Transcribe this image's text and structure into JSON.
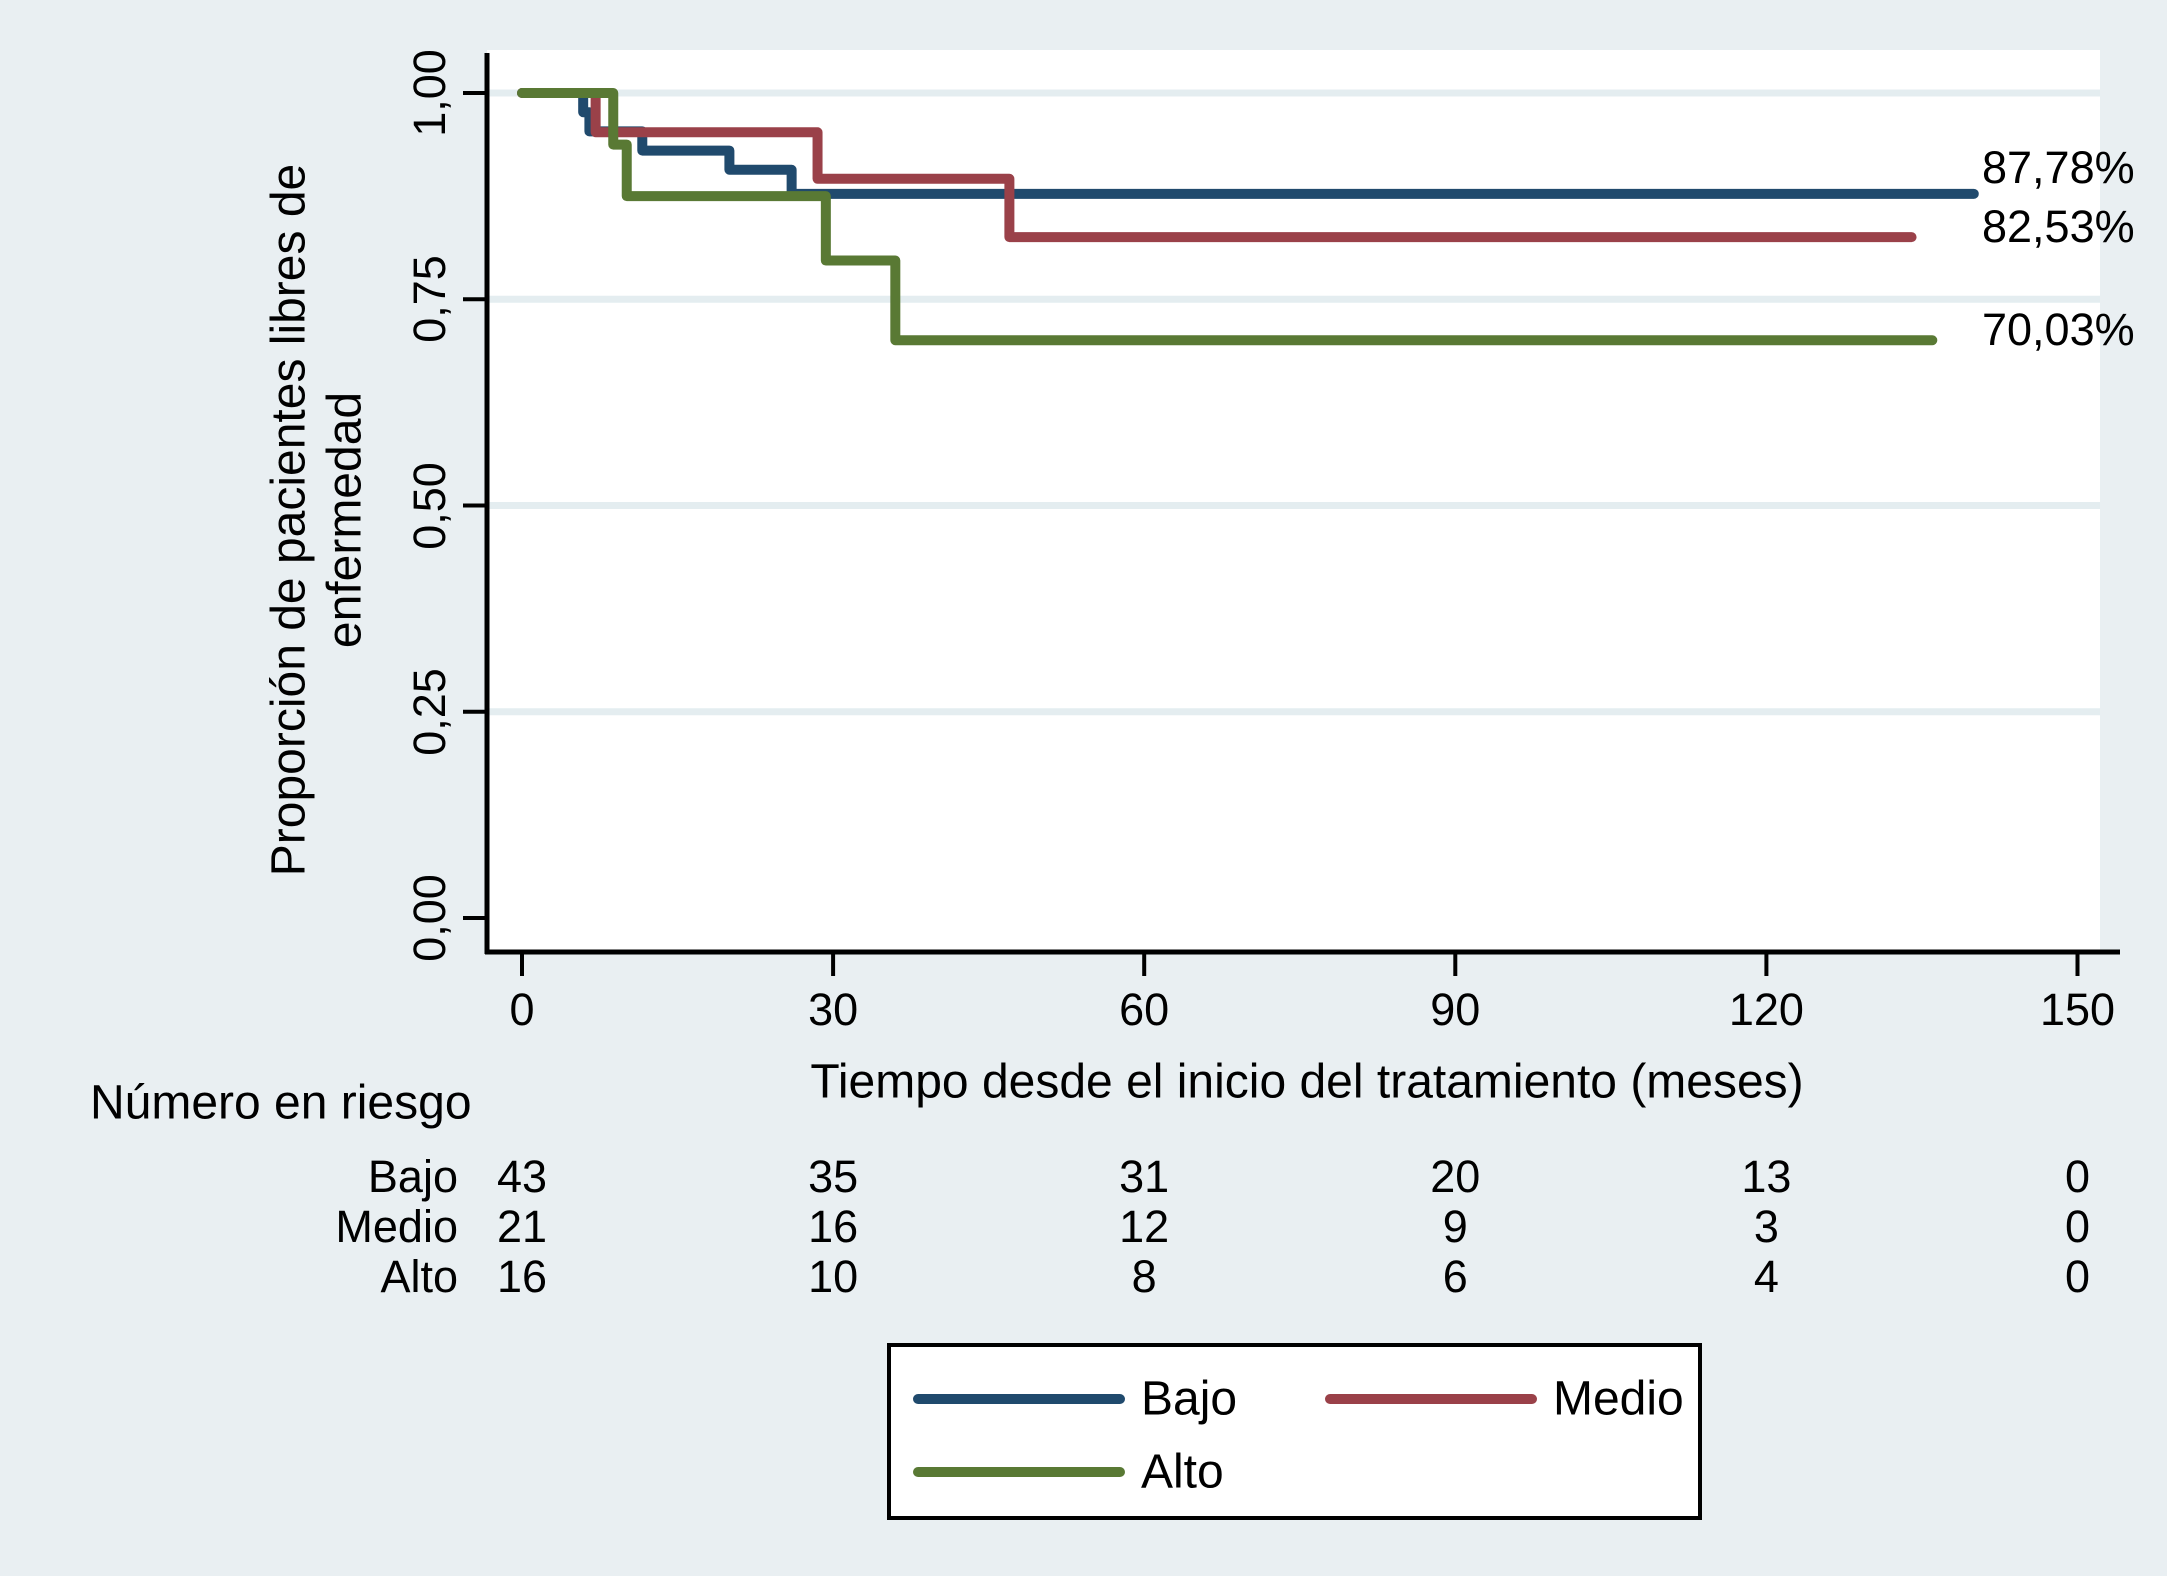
{
  "colors": {
    "background": "#e9eff2",
    "plot_background": "#ffffff",
    "gridline": "#e4edf0",
    "axis": "#000000",
    "navy": "#204a6d",
    "maroon": "#9a4149",
    "olive": "#597934"
  },
  "chart_data": {
    "type": "line",
    "subtype": "kaplan-meier-step",
    "title": "",
    "xlabel": "Tiempo desde el inicio del tratamiento (meses)",
    "ylabel_line1": "Proporción de pacientes libres de",
    "ylabel_line2": "enfermedad",
    "xlim": [
      0,
      150
    ],
    "ylim": [
      0,
      1
    ],
    "xticks": [
      0,
      30,
      60,
      90,
      120,
      150
    ],
    "ytick_values": [
      0,
      0.25,
      0.5,
      0.75,
      1
    ],
    "ytick_labels": [
      "0,00",
      "0,25",
      "0,50",
      "0,75",
      "1,00"
    ],
    "grid": true,
    "legend_position": "bottom-center",
    "series": [
      {
        "name": "Bajo",
        "color_key": "navy",
        "end_label": "87,78%",
        "end_time": 140,
        "steps": [
          [
            0,
            1.0
          ],
          [
            5.9,
            0.9767
          ],
          [
            6.5,
            0.9535
          ],
          [
            11.6,
            0.9302
          ],
          [
            20.0,
            0.907
          ],
          [
            26.0,
            0.8778
          ]
        ]
      },
      {
        "name": "Medio",
        "color_key": "maroon",
        "end_label": "82,53%",
        "end_time": 134,
        "steps": [
          [
            0,
            1.0
          ],
          [
            7.1,
            0.9524
          ],
          [
            28.5,
            0.896
          ],
          [
            47.0,
            0.8253
          ]
        ]
      },
      {
        "name": "Alto",
        "color_key": "olive",
        "end_label": "70,03%",
        "end_time": 136,
        "steps": [
          [
            0,
            1.0
          ],
          [
            8.8,
            0.9375
          ],
          [
            10.1,
            0.875
          ],
          [
            29.3,
            0.7969
          ],
          [
            36.0,
            0.7003
          ]
        ]
      }
    ],
    "risk_table": {
      "title": "Número en riesgo",
      "times": [
        0,
        30,
        60,
        90,
        120,
        150
      ],
      "rows": [
        {
          "label": "Bajo",
          "values": [
            43,
            35,
            31,
            20,
            13,
            0
          ]
        },
        {
          "label": "Medio",
          "values": [
            21,
            16,
            12,
            9,
            3,
            0
          ]
        },
        {
          "label": "Alto",
          "values": [
            16,
            10,
            8,
            6,
            4,
            0
          ]
        }
      ]
    },
    "legend": {
      "items": [
        {
          "label": "Bajo",
          "color_key": "navy"
        },
        {
          "label": "Medio",
          "color_key": "maroon"
        },
        {
          "label": "Alto",
          "color_key": "olive"
        }
      ]
    }
  }
}
